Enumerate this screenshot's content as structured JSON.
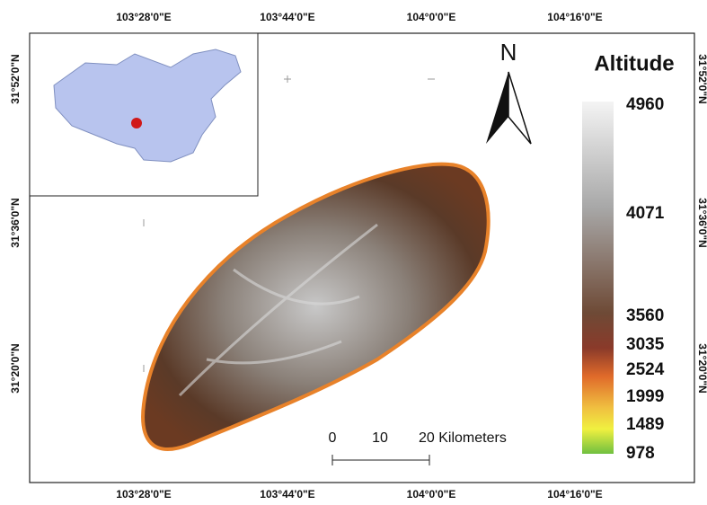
{
  "map": {
    "longitude_labels": [
      "103°28'0\"E",
      "103°44'0\"E",
      "104°0'0\"E",
      "104°16'0\"E"
    ],
    "latitude_labels": [
      "31°52'0\"N",
      "31°36'0\"N",
      "31°20'0\"N"
    ],
    "north_label": "N",
    "legend": {
      "title": "Altitude",
      "values": [
        4960,
        4071,
        3560,
        3035,
        2524,
        1999,
        1489,
        978
      ]
    },
    "scale_bar": {
      "labels": [
        "0",
        "10",
        "20 Kilometers"
      ]
    }
  }
}
